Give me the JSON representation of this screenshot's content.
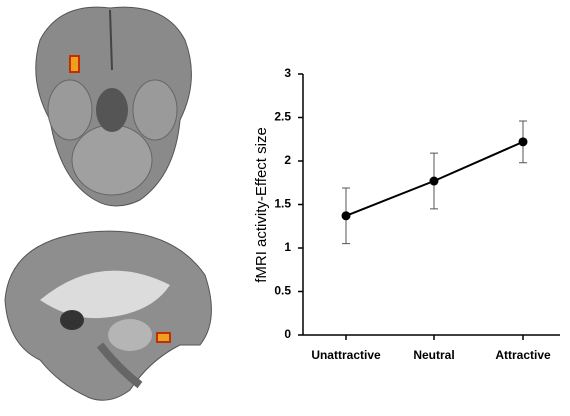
{
  "chart_data": {
    "type": "line",
    "y_label": "fMRI activity-Effect size",
    "categories": [
      "Unattractive",
      "Neutral",
      "Attractive"
    ],
    "values": [
      1.37,
      1.77,
      2.22
    ],
    "errors": [
      0.32,
      0.32,
      0.24
    ],
    "color": "#000000",
    "ylim": [
      0,
      3
    ],
    "yticks": [
      0,
      0.5,
      1,
      1.5,
      2,
      2.5,
      3
    ]
  }
}
